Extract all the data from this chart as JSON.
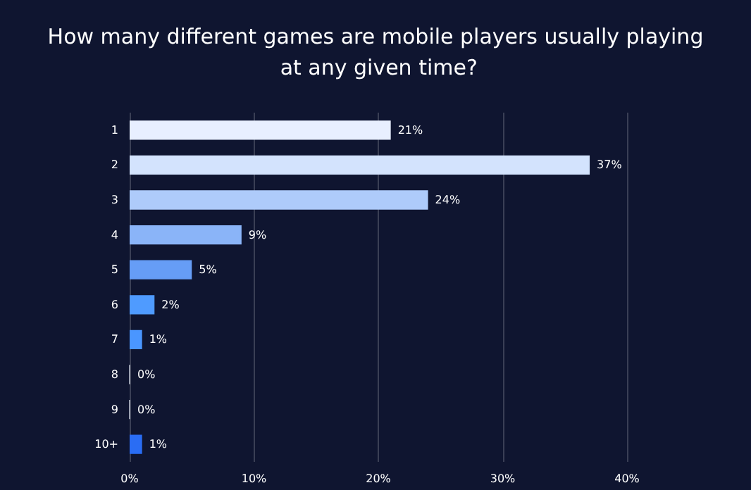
{
  "chart_data": {
    "type": "bar",
    "orientation": "horizontal",
    "title": "How many different games are mobile players usually playing at any given time?",
    "categories": [
      "1",
      "2",
      "3",
      "4",
      "5",
      "6",
      "7",
      "8",
      "9",
      "10+"
    ],
    "values": [
      21,
      37,
      24,
      9,
      5,
      2,
      1,
      0,
      0,
      1
    ],
    "value_labels": [
      "21%",
      "37%",
      "24%",
      "9%",
      "5%",
      "2%",
      "1%",
      "0%",
      "0%",
      "1%"
    ],
    "colors": [
      "#e8efff",
      "#d3e3fd",
      "#aecbfa",
      "#8ab4f8",
      "#669df6",
      "#4f9bff",
      "#4a96ff",
      "#9aa0b0",
      "#9aa0b0",
      "#2a6df4"
    ],
    "xlim": [
      0,
      40
    ],
    "xticks": [
      {
        "value": 0,
        "label": "0%"
      },
      {
        "value": 10,
        "label": "10%"
      },
      {
        "value": 20,
        "label": "20%"
      },
      {
        "value": 30,
        "label": "30%"
      },
      {
        "value": 40,
        "label": "40%"
      }
    ],
    "grid": "x"
  }
}
